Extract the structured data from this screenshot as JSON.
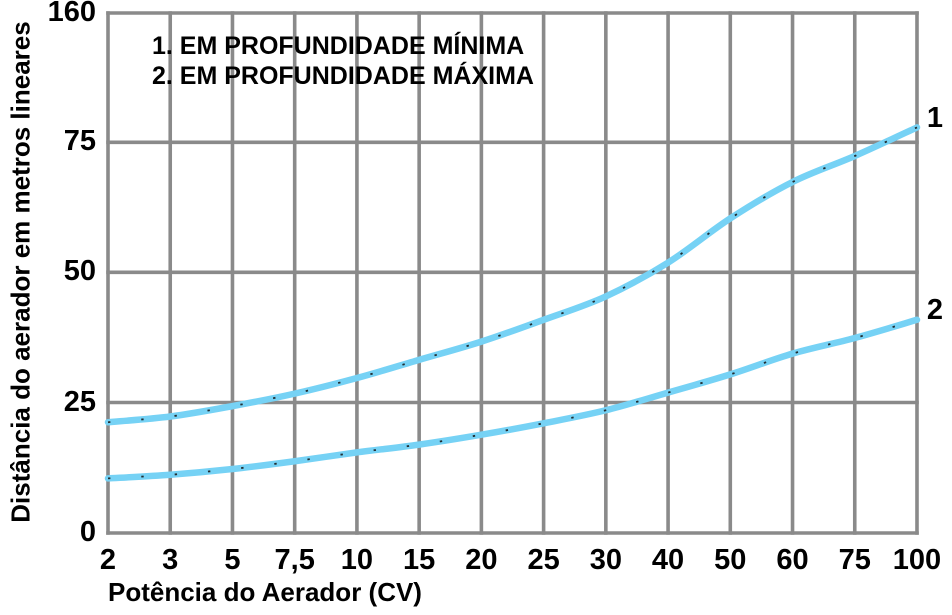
{
  "chart_data": {
    "type": "line",
    "title": "",
    "xlabel": "Potência do Aerador (CV)",
    "ylabel": "Distância do aerador em metros lineares",
    "x_tick_labels": [
      "2",
      "3",
      "5",
      "7,5",
      "10",
      "15",
      "20",
      "25",
      "30",
      "40",
      "50",
      "60",
      "75",
      "100"
    ],
    "y_tick_labels_top_to_bottom": [
      "160",
      "75",
      "50",
      "25",
      "0"
    ],
    "x_scale": "custom quasi-logarithmic ticks, evenly spaced",
    "grid": true,
    "legend_position": "top-left inside plot",
    "legend_lines": [
      "1. EM PROFUNDIDADE MÍNIMA",
      "2. EM PROFUNDIDADE MÁXIMA"
    ],
    "series": [
      {
        "name": "1",
        "label": "EM PROFUNDIDADE MÍNIMA",
        "x": [
          2,
          3,
          5,
          7.5,
          10,
          15,
          20,
          25,
          30,
          40,
          50,
          60,
          75,
          100
        ],
        "values": [
          21.3,
          22.4,
          24.4,
          26.8,
          29.8,
          33.3,
          36.8,
          41.0,
          45.5,
          52.0,
          60.5,
          67.5,
          72.5,
          78.0
        ]
      },
      {
        "name": "2",
        "label": "EM PROFUNDIDADE MÁXIMA",
        "x": [
          2,
          3,
          5,
          7.5,
          10,
          15,
          20,
          25,
          30,
          40,
          50,
          60,
          75,
          100
        ],
        "values": [
          10.5,
          11.2,
          12.3,
          13.8,
          15.5,
          17.0,
          18.9,
          21.1,
          23.6,
          27.0,
          30.5,
          34.5,
          37.5,
          41.0
        ]
      }
    ],
    "colors": {
      "curve": "#76d2f5",
      "curve_dots": "#1a1a1a",
      "grid": "#8a8a8a",
      "text": "#000000",
      "background": "#ffffff"
    }
  }
}
